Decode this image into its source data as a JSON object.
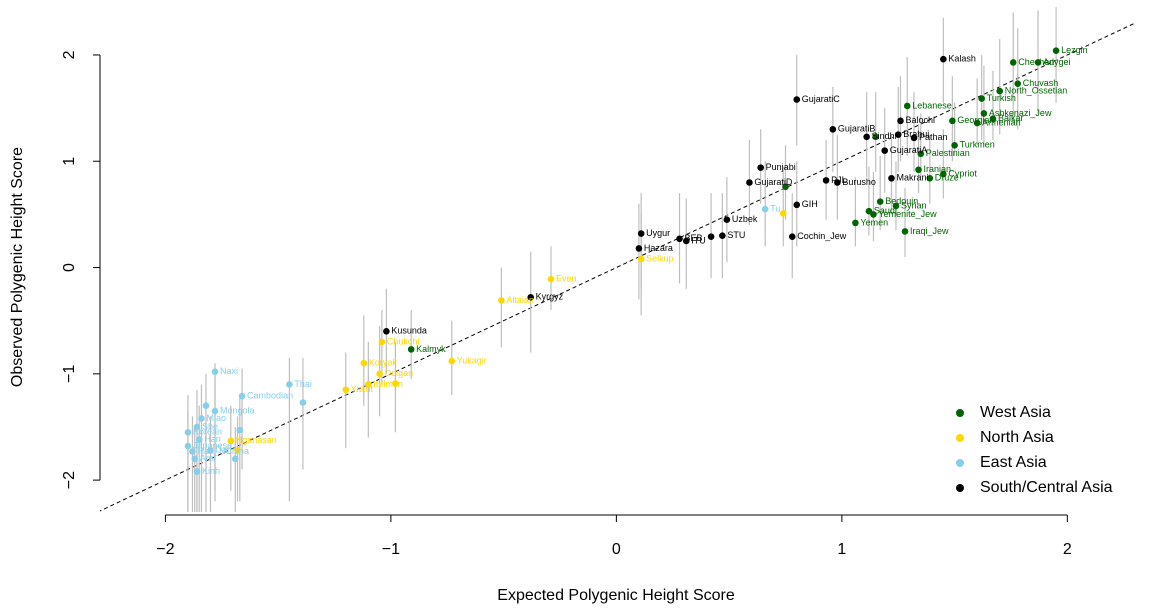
{
  "chart_data": {
    "type": "scatter",
    "x_label": "Expected Polygenic Height Score",
    "y_label": "Observed Polygenic Height Score",
    "xlim": [
      -2.29,
      2.3
    ],
    "ylim": [
      -2.3,
      2.47
    ],
    "xticks": [
      {
        "value": -2,
        "label": "−2"
      },
      {
        "value": -1,
        "label": "−1"
      },
      0,
      1,
      2
    ],
    "yticks": [
      {
        "value": -2,
        "label": "−2"
      },
      {
        "value": -1,
        "label": "−1"
      },
      0,
      1,
      2
    ],
    "identity_line": true,
    "error_bar_color": "#bebebe",
    "legend": "bottom-right",
    "series": [
      {
        "name": "West Asia",
        "color": "#006400",
        "labels": [
          "Lezgin",
          "Adygei",
          "Chechen",
          "Chuvash",
          "North_Ossetian",
          "Lebanese",
          "Turkish",
          "Ashkenazi_Jew",
          "Georgian",
          "Balkar",
          "Armenian",
          "Turkmen",
          "Palestinian",
          "Iranian",
          "Cypriot",
          "Druze",
          "Iraqi_Jew",
          "Bedouin",
          "Syrian",
          "Saudi",
          "Yemenite_Jew",
          "Yemen",
          "Kalmyk",
          null,
          null
        ],
        "x": [
          1.95,
          1.87,
          1.76,
          1.78,
          1.7,
          1.29,
          1.62,
          1.63,
          1.49,
          1.67,
          1.6,
          1.5,
          1.35,
          1.34,
          1.45,
          1.39,
          1.28,
          1.17,
          1.24,
          1.12,
          1.14,
          1.06,
          -0.91,
          0.75,
          1.15
        ],
        "values": [
          2.04,
          1.93,
          1.93,
          1.73,
          1.66,
          1.52,
          1.59,
          1.45,
          1.38,
          1.4,
          1.36,
          1.15,
          1.07,
          0.92,
          0.88,
          0.84,
          0.34,
          0.62,
          0.58,
          0.53,
          0.5,
          0.42,
          -0.77,
          0.76,
          1.23
        ],
        "lower": [
          1.55,
          1.45,
          1.35,
          1.3,
          1.25,
          1.05,
          1.2,
          1.15,
          1.0,
          1.2,
          1.15,
          1.05,
          0.85,
          0.7,
          0.65,
          0.6,
          0.1,
          0.35,
          0.35,
          0.3,
          0.25,
          0.2,
          -1.05,
          0.45,
          0.9
        ],
        "upper": [
          2.45,
          2.42,
          2.4,
          2.25,
          2.15,
          1.98,
          2.0,
          1.9,
          1.8,
          1.85,
          1.78,
          1.55,
          1.45,
          1.35,
          1.3,
          1.25,
          0.75,
          1.05,
          1.0,
          0.95,
          0.9,
          0.85,
          -0.4,
          1.15,
          1.65
        ]
      },
      {
        "name": "North Asia",
        "color": "#ffd700",
        "labels": [
          "Selkup",
          null,
          "Even",
          "Altaian",
          "Chukchi",
          "Koryak",
          "Yukagir",
          "Dolgan",
          "Itelmen",
          "Yakut",
          null,
          "Nganasan",
          null
        ],
        "x": [
          0.11,
          0.74,
          -0.29,
          -0.51,
          -1.04,
          -1.12,
          -0.73,
          -1.05,
          -1.1,
          -1.2,
          -0.98,
          -1.71,
          -1.68
        ],
        "values": [
          0.08,
          0.51,
          -0.11,
          -0.31,
          -0.7,
          -0.9,
          -0.88,
          -1.0,
          -1.1,
          -1.15,
          -1.09,
          -1.63,
          -1.72
        ],
        "lower": [
          -0.45,
          0.2,
          -0.4,
          -0.75,
          -1.1,
          -1.3,
          -1.2,
          -1.4,
          -1.6,
          -1.7,
          -1.55,
          -2.1,
          -2.2
        ],
        "upper": [
          0.5,
          0.95,
          0.2,
          0.0,
          -0.4,
          -0.45,
          -0.5,
          -0.55,
          -0.7,
          -0.8,
          -0.7,
          -1.3,
          -1.4
        ]
      },
      {
        "name": "East Asia",
        "color": "#87ceeb",
        "labels": [
          "Naxi",
          "Cambodian",
          "Mongola",
          "Thai",
          "Tu",
          null,
          "Miao",
          "She",
          "Korean",
          "Japanese",
          "Han_NChina",
          "Han",
          "Dai",
          "Ami",
          "Kinh",
          null,
          null,
          null
        ],
        "x": [
          -1.78,
          -1.66,
          -1.78,
          -1.45,
          0.66,
          -1.39,
          -1.84,
          -1.86,
          -1.9,
          -1.9,
          -1.88,
          -1.85,
          -1.8,
          -1.87,
          -1.86,
          -1.67,
          -1.69,
          -1.82
        ],
        "values": [
          -0.98,
          -1.21,
          -1.35,
          -1.1,
          0.55,
          -1.27,
          -1.42,
          -1.5,
          -1.55,
          -1.68,
          -1.73,
          -1.62,
          -1.72,
          -1.8,
          -1.92,
          -1.53,
          -1.8,
          -1.3
        ],
        "lower": [
          -2.2,
          -1.9,
          -2.1,
          -2.2,
          0.2,
          -1.9,
          -2.3,
          -2.3,
          -2.3,
          -2.3,
          -2.3,
          -2.3,
          -2.3,
          -2.3,
          -2.3,
          -2.2,
          -2.3,
          -2.3
        ],
        "upper": [
          -0.9,
          -0.95,
          -1.0,
          -0.85,
          1.0,
          -0.85,
          -1.1,
          -1.15,
          -1.2,
          -1.35,
          -1.4,
          -1.3,
          -1.4,
          -1.5,
          -1.6,
          -1.2,
          -1.5,
          -1.0
        ]
      },
      {
        "name": "South/Central Asia",
        "color": "#000000",
        "labels": [
          "Kalash",
          "GujaratiC",
          "Balochi",
          "GujaratiB",
          "Sindhi",
          "Brahui",
          "Pathan",
          "GujaratiA",
          "Punjabi",
          "GujaratiD",
          "PJL",
          "Burusho",
          "Makrani",
          "GIH",
          "Uzbek",
          "Uygur",
          "Hazara",
          "BEB",
          "ITU",
          "STU",
          null,
          "Cochin_Jew",
          "Kyrgyz",
          "Kusunda"
        ],
        "x": [
          1.45,
          0.8,
          1.26,
          0.96,
          1.11,
          1.25,
          1.32,
          1.19,
          0.64,
          0.59,
          0.93,
          0.98,
          1.22,
          0.8,
          0.49,
          0.11,
          0.1,
          0.28,
          0.31,
          0.47,
          0.42,
          0.78,
          -0.38,
          -1.02
        ],
        "values": [
          1.96,
          1.58,
          1.38,
          1.3,
          1.23,
          1.25,
          1.22,
          1.1,
          0.94,
          0.8,
          0.82,
          0.8,
          0.84,
          0.59,
          0.45,
          0.32,
          0.18,
          0.27,
          0.25,
          0.3,
          0.29,
          0.29,
          -0.28,
          -0.6
        ],
        "lower": [
          1.55,
          1.15,
          1.0,
          0.9,
          0.85,
          0.9,
          0.9,
          0.7,
          0.6,
          0.4,
          0.45,
          0.45,
          0.5,
          0.2,
          0.05,
          -0.2,
          -0.3,
          -0.15,
          -0.2,
          -0.1,
          -0.1,
          -0.1,
          -0.8,
          -1.0
        ],
        "upper": [
          2.35,
          2.0,
          1.8,
          1.7,
          1.65,
          1.7,
          1.65,
          1.5,
          1.3,
          1.2,
          1.2,
          1.25,
          1.25,
          1.0,
          0.85,
          0.7,
          0.6,
          0.7,
          0.65,
          0.7,
          0.7,
          0.7,
          0.15,
          -0.2
        ]
      }
    ]
  }
}
